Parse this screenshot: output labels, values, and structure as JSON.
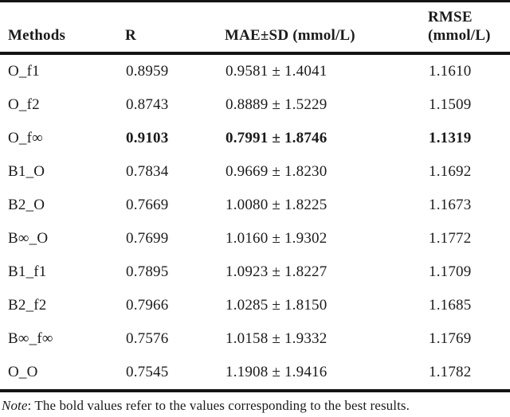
{
  "page": {
    "background": "#ffffff",
    "text_color": "#1b1b1b",
    "rule_color": "#141414"
  },
  "table": {
    "headers": {
      "methods": "Methods",
      "r": "R",
      "mae_sd": "MAE±SD (mmol/L)",
      "rmse_line1": "RMSE",
      "rmse_line2": "(mmol/L)"
    },
    "rows": [
      {
        "method": "O_f1",
        "r": "0.8959",
        "mae_sd": "0.9581 ± 1.4041",
        "rmse": "1.1610",
        "bold": false
      },
      {
        "method": "O_f2",
        "r": "0.8743",
        "mae_sd": "0.8889 ± 1.5229",
        "rmse": "1.1509",
        "bold": false
      },
      {
        "method": "O_f∞",
        "r": "0.9103",
        "mae_sd": "0.7991 ± 1.8746",
        "rmse": "1.1319",
        "bold": true
      },
      {
        "method": "B1_O",
        "r": "0.7834",
        "mae_sd": "0.9669 ± 1.8230",
        "rmse": "1.1692",
        "bold": false
      },
      {
        "method": "B2_O",
        "r": "0.7669",
        "mae_sd": "1.0080 ± 1.8225",
        "rmse": "1.1673",
        "bold": false
      },
      {
        "method": "B∞_O",
        "r": "0.7699",
        "mae_sd": "1.0160 ± 1.9302",
        "rmse": "1.1772",
        "bold": false
      },
      {
        "method": "B1_f1",
        "r": "0.7895",
        "mae_sd": "1.0923 ± 1.8227",
        "rmse": "1.1709",
        "bold": false
      },
      {
        "method": "B2_f2",
        "r": "0.7966",
        "mae_sd": "1.0285 ± 1.8150",
        "rmse": "1.1685",
        "bold": false
      },
      {
        "method": "B∞_f∞",
        "r": "0.7576",
        "mae_sd": "1.0158 ± 1.9332",
        "rmse": "1.1769",
        "bold": false
      },
      {
        "method": "O_O",
        "r": "0.7545",
        "mae_sd": "1.1908 ± 1.9416",
        "rmse": "1.1782",
        "bold": false
      }
    ]
  },
  "note": {
    "label": "Note",
    "text": ": The bold values refer to the values corresponding to the best results."
  }
}
